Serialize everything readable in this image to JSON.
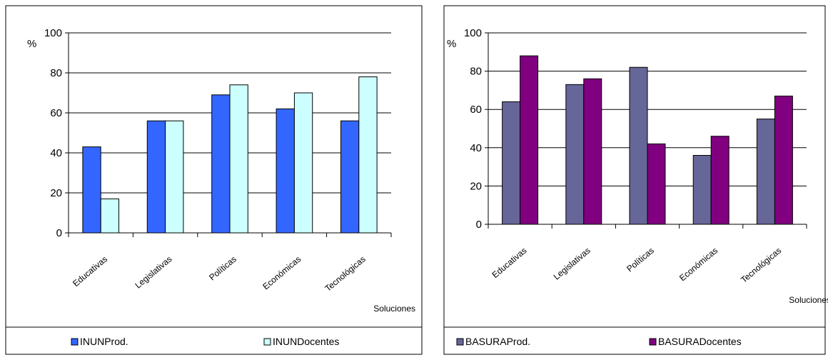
{
  "chart_data": [
    {
      "type": "bar",
      "ylabel": "%",
      "xlabel": "Soluciones",
      "ylim": [
        0,
        100
      ],
      "yticks": [
        "0",
        "20",
        "40",
        "60",
        "80",
        "100"
      ],
      "grid": true,
      "legend_position": "bottom",
      "categories": [
        "Educativas",
        "Legislativas",
        "Políticas",
        "Económicas",
        "Tecnológicas"
      ],
      "series": [
        {
          "name": "INUNProd.",
          "color": "#3366ff",
          "values": [
            43,
            56,
            69,
            62,
            56
          ]
        },
        {
          "name": "INUNDocentes",
          "color": "#ccffff",
          "values": [
            17,
            56,
            74,
            70,
            78
          ]
        }
      ]
    },
    {
      "type": "bar",
      "ylabel": "%",
      "xlabel": "Soluciones",
      "ylim": [
        0,
        100
      ],
      "yticks": [
        "0",
        "20",
        "40",
        "60",
        "80",
        "100"
      ],
      "grid": true,
      "legend_position": "bottom",
      "categories": [
        "Educativas",
        "Legislativas",
        "Políticas",
        "Económicas",
        "Tecnológicas"
      ],
      "series": [
        {
          "name": "BASURAProd.",
          "color": "#666699",
          "values": [
            64,
            73,
            82,
            36,
            55
          ]
        },
        {
          "name": "BASURADocentes",
          "color": "#800080",
          "values": [
            88,
            76,
            42,
            46,
            67
          ]
        }
      ]
    }
  ]
}
